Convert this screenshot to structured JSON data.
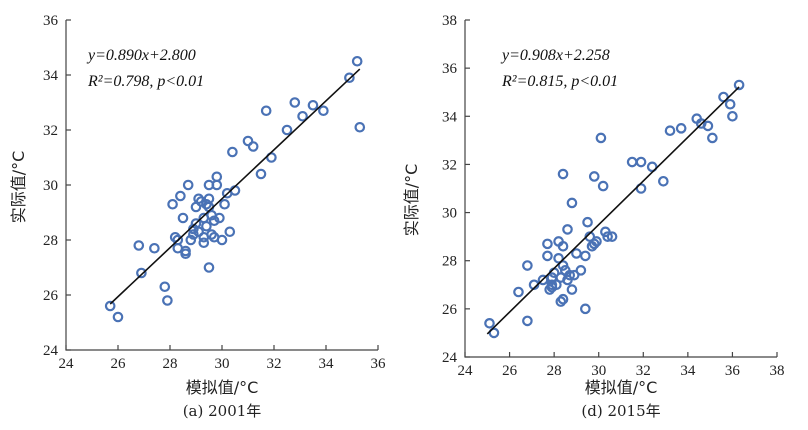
{
  "chart_data": [
    {
      "type": "scatter",
      "caption": "(a) 2001年",
      "xlabel": "模拟值/°C",
      "ylabel": "实际值/°C",
      "xlim": [
        24,
        36
      ],
      "ylim": [
        24,
        36
      ],
      "xticks": [
        "24",
        "26",
        "28",
        "30",
        "32",
        "34",
        "36"
      ],
      "yticks": [
        "24",
        "26",
        "28",
        "30",
        "32",
        "34",
        "36"
      ],
      "equation": "y=0.890x+2.800",
      "stats": "R²=0.798, p<0.01",
      "fit": {
        "slope": 0.89,
        "intercept": 2.8,
        "x_range": [
          25.7,
          35.3
        ]
      },
      "marker_color": "#4a72b5",
      "points": [
        [
          25.7,
          25.6
        ],
        [
          26.0,
          25.2
        ],
        [
          26.9,
          26.8
        ],
        [
          26.8,
          27.8
        ],
        [
          27.4,
          27.7
        ],
        [
          27.8,
          26.3
        ],
        [
          27.9,
          25.8
        ],
        [
          28.1,
          29.3
        ],
        [
          28.2,
          28.1
        ],
        [
          28.3,
          28.0
        ],
        [
          28.3,
          27.7
        ],
        [
          28.4,
          29.6
        ],
        [
          28.5,
          28.8
        ],
        [
          28.6,
          27.6
        ],
        [
          28.6,
          27.5
        ],
        [
          28.7,
          30.0
        ],
        [
          28.8,
          28.0
        ],
        [
          28.9,
          28.2
        ],
        [
          28.9,
          28.4
        ],
        [
          29.0,
          29.2
        ],
        [
          29.0,
          28.6
        ],
        [
          29.1,
          29.5
        ],
        [
          29.1,
          28.3
        ],
        [
          29.2,
          29.4
        ],
        [
          29.3,
          28.8
        ],
        [
          29.3,
          28.1
        ],
        [
          29.3,
          27.9
        ],
        [
          29.4,
          29.3
        ],
        [
          29.4,
          28.5
        ],
        [
          29.5,
          29.5
        ],
        [
          29.5,
          29.2
        ],
        [
          29.5,
          30.0
        ],
        [
          29.5,
          27.0
        ],
        [
          29.6,
          28.9
        ],
        [
          29.6,
          28.2
        ],
        [
          29.7,
          28.7
        ],
        [
          29.7,
          28.1
        ],
        [
          29.8,
          30.3
        ],
        [
          29.8,
          30.0
        ],
        [
          29.9,
          28.8
        ],
        [
          30.0,
          28.0
        ],
        [
          30.1,
          29.3
        ],
        [
          30.2,
          29.7
        ],
        [
          30.3,
          28.3
        ],
        [
          30.4,
          31.2
        ],
        [
          30.5,
          29.8
        ],
        [
          31.0,
          31.6
        ],
        [
          31.2,
          31.4
        ],
        [
          31.5,
          30.4
        ],
        [
          31.7,
          32.7
        ],
        [
          31.9,
          31.0
        ],
        [
          32.5,
          32.0
        ],
        [
          32.8,
          33.0
        ],
        [
          33.1,
          32.5
        ],
        [
          33.5,
          32.9
        ],
        [
          33.9,
          32.7
        ],
        [
          34.9,
          33.9
        ],
        [
          35.2,
          34.5
        ],
        [
          35.3,
          32.1
        ]
      ]
    },
    {
      "type": "scatter",
      "caption": "(d) 2015年",
      "xlabel": "模拟值/°C",
      "ylabel": "实际值/°C",
      "xlim": [
        24,
        38
      ],
      "ylim": [
        24,
        38
      ],
      "xticks": [
        "24",
        "26",
        "28",
        "30",
        "32",
        "34",
        "36",
        "38"
      ],
      "yticks": [
        "24",
        "26",
        "28",
        "30",
        "32",
        "34",
        "36",
        "38"
      ],
      "equation": "y=0.908x+2.258",
      "stats": "R²=0.815, p<0.01",
      "fit": {
        "slope": 0.908,
        "intercept": 2.258,
        "x_range": [
          25.0,
          36.3
        ]
      },
      "marker_color": "#4a72b5",
      "points": [
        [
          25.1,
          25.4
        ],
        [
          25.3,
          25.0
        ],
        [
          26.4,
          26.7
        ],
        [
          26.8,
          25.5
        ],
        [
          26.8,
          27.8
        ],
        [
          27.1,
          27.0
        ],
        [
          27.5,
          27.2
        ],
        [
          27.7,
          28.2
        ],
        [
          27.7,
          28.7
        ],
        [
          27.8,
          26.8
        ],
        [
          27.9,
          27.0
        ],
        [
          27.9,
          27.3
        ],
        [
          27.9,
          26.9
        ],
        [
          28.0,
          27.5
        ],
        [
          28.1,
          27.0
        ],
        [
          28.2,
          28.1
        ],
        [
          28.2,
          28.8
        ],
        [
          28.3,
          27.3
        ],
        [
          28.3,
          26.3
        ],
        [
          28.4,
          26.4
        ],
        [
          28.4,
          27.8
        ],
        [
          28.4,
          31.6
        ],
        [
          28.4,
          28.6
        ],
        [
          28.5,
          27.6
        ],
        [
          28.6,
          29.3
        ],
        [
          28.6,
          27.2
        ],
        [
          28.7,
          27.4
        ],
        [
          28.8,
          30.4
        ],
        [
          28.8,
          26.8
        ],
        [
          28.9,
          27.4
        ],
        [
          29.0,
          28.3
        ],
        [
          29.2,
          27.6
        ],
        [
          29.4,
          26.0
        ],
        [
          29.4,
          28.2
        ],
        [
          29.5,
          29.6
        ],
        [
          29.6,
          29.0
        ],
        [
          29.7,
          28.6
        ],
        [
          29.8,
          31.5
        ],
        [
          29.8,
          28.7
        ],
        [
          29.9,
          28.8
        ],
        [
          30.1,
          33.1
        ],
        [
          30.2,
          31.1
        ],
        [
          30.3,
          29.2
        ],
        [
          30.4,
          29.0
        ],
        [
          30.6,
          29.0
        ],
        [
          31.5,
          32.1
        ],
        [
          31.9,
          32.1
        ],
        [
          31.9,
          31.0
        ],
        [
          32.4,
          31.9
        ],
        [
          32.9,
          31.3
        ],
        [
          33.2,
          33.4
        ],
        [
          33.7,
          33.5
        ],
        [
          34.4,
          33.9
        ],
        [
          34.6,
          33.7
        ],
        [
          34.9,
          33.6
        ],
        [
          35.1,
          33.1
        ],
        [
          35.6,
          34.8
        ],
        [
          35.9,
          34.5
        ],
        [
          36.0,
          34.0
        ],
        [
          36.3,
          35.3
        ]
      ]
    }
  ]
}
